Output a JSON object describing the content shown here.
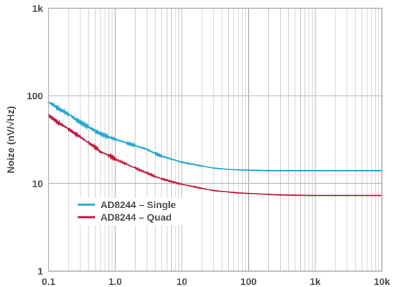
{
  "chart_data": {
    "type": "line",
    "xlabel": "",
    "ylabel": "Noize (nV/√Hz)",
    "xscale": "log",
    "yscale": "log",
    "xlim": [
      0.1,
      10000
    ],
    "ylim": [
      1,
      1000
    ],
    "x_ticks": [
      {
        "value": 0.1,
        "label": "0.1"
      },
      {
        "value": 1,
        "label": "1.0"
      },
      {
        "value": 10,
        "label": "10"
      },
      {
        "value": 100,
        "label": "100"
      },
      {
        "value": 1000,
        "label": "1k"
      },
      {
        "value": 10000,
        "label": "10k"
      }
    ],
    "y_ticks": [
      {
        "value": 1,
        "label": "1"
      },
      {
        "value": 10,
        "label": "10"
      },
      {
        "value": 100,
        "label": "100"
      },
      {
        "value": 1000,
        "label": "1k"
      }
    ],
    "grid": true,
    "legend_position": "bottom-left",
    "series": [
      {
        "name": "AD8244 – Single",
        "color": "#1ea7cf",
        "x": [
          0.1,
          0.12,
          0.15,
          0.2,
          0.25,
          0.3,
          0.4,
          0.5,
          0.6,
          0.8,
          1,
          1.5,
          2,
          3,
          4,
          5,
          7,
          10,
          15,
          20,
          30,
          50,
          70,
          100,
          150,
          200,
          300,
          500,
          1000,
          2000,
          5000,
          10000
        ],
        "y": [
          85,
          78,
          70,
          62,
          55,
          50,
          44,
          40,
          37,
          34,
          32,
          29,
          27,
          24.5,
          22,
          20.5,
          19,
          17.5,
          16.5,
          15.8,
          15,
          14.5,
          14.3,
          14.2,
          14.1,
          14,
          14,
          14,
          14,
          14,
          14,
          14
        ]
      },
      {
        "name": "AD8244 – Quad",
        "color": "#c0163a",
        "x": [
          0.1,
          0.12,
          0.15,
          0.2,
          0.25,
          0.3,
          0.4,
          0.5,
          0.6,
          0.8,
          1,
          1.5,
          2,
          3,
          4,
          5,
          7,
          10,
          15,
          20,
          30,
          50,
          70,
          100,
          150,
          200,
          300,
          500,
          1000,
          2000,
          5000,
          10000
        ],
        "y": [
          60,
          54,
          48,
          42,
          37,
          34,
          29,
          26,
          23,
          21,
          19,
          16.5,
          15,
          13.2,
          12,
          11.3,
          10.5,
          9.8,
          9.2,
          8.8,
          8.3,
          8,
          7.8,
          7.7,
          7.6,
          7.5,
          7.4,
          7.35,
          7.3,
          7.3,
          7.3,
          7.3
        ]
      }
    ]
  }
}
